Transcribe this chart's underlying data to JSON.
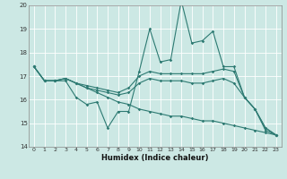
{
  "title": "",
  "xlabel": "Humidex (Indice chaleur)",
  "ylabel": "",
  "bg_color": "#cce8e4",
  "grid_color": "#ffffff",
  "line_color": "#2d7a72",
  "xlim": [
    -0.5,
    23.5
  ],
  "ylim": [
    14,
    20
  ],
  "yticks": [
    14,
    15,
    16,
    17,
    18,
    19,
    20
  ],
  "xticks": [
    0,
    1,
    2,
    3,
    4,
    5,
    6,
    7,
    8,
    9,
    10,
    11,
    12,
    13,
    14,
    15,
    16,
    17,
    18,
    19,
    20,
    21,
    22,
    23
  ],
  "line1": [
    17.4,
    16.8,
    16.8,
    16.8,
    16.1,
    15.8,
    15.9,
    14.8,
    15.5,
    15.5,
    17.2,
    19.0,
    17.6,
    17.7,
    20.2,
    18.4,
    18.5,
    18.9,
    17.4,
    17.4,
    16.1,
    15.6,
    14.7,
    14.5
  ],
  "line2": [
    17.4,
    16.8,
    16.8,
    16.9,
    16.7,
    16.6,
    16.5,
    16.4,
    16.3,
    16.5,
    17.0,
    17.2,
    17.1,
    17.1,
    17.1,
    17.1,
    17.1,
    17.2,
    17.3,
    17.2,
    16.1,
    15.6,
    14.8,
    14.5
  ],
  "line3": [
    17.4,
    16.8,
    16.8,
    16.9,
    16.7,
    16.5,
    16.4,
    16.3,
    16.2,
    16.3,
    16.7,
    16.9,
    16.8,
    16.8,
    16.8,
    16.7,
    16.7,
    16.8,
    16.9,
    16.7,
    16.1,
    15.6,
    14.8,
    14.5
  ],
  "line4": [
    17.4,
    16.8,
    16.8,
    16.9,
    16.7,
    16.5,
    16.3,
    16.1,
    15.9,
    15.8,
    15.6,
    15.5,
    15.4,
    15.3,
    15.3,
    15.2,
    15.1,
    15.1,
    15.0,
    14.9,
    14.8,
    14.7,
    14.6,
    14.5
  ]
}
